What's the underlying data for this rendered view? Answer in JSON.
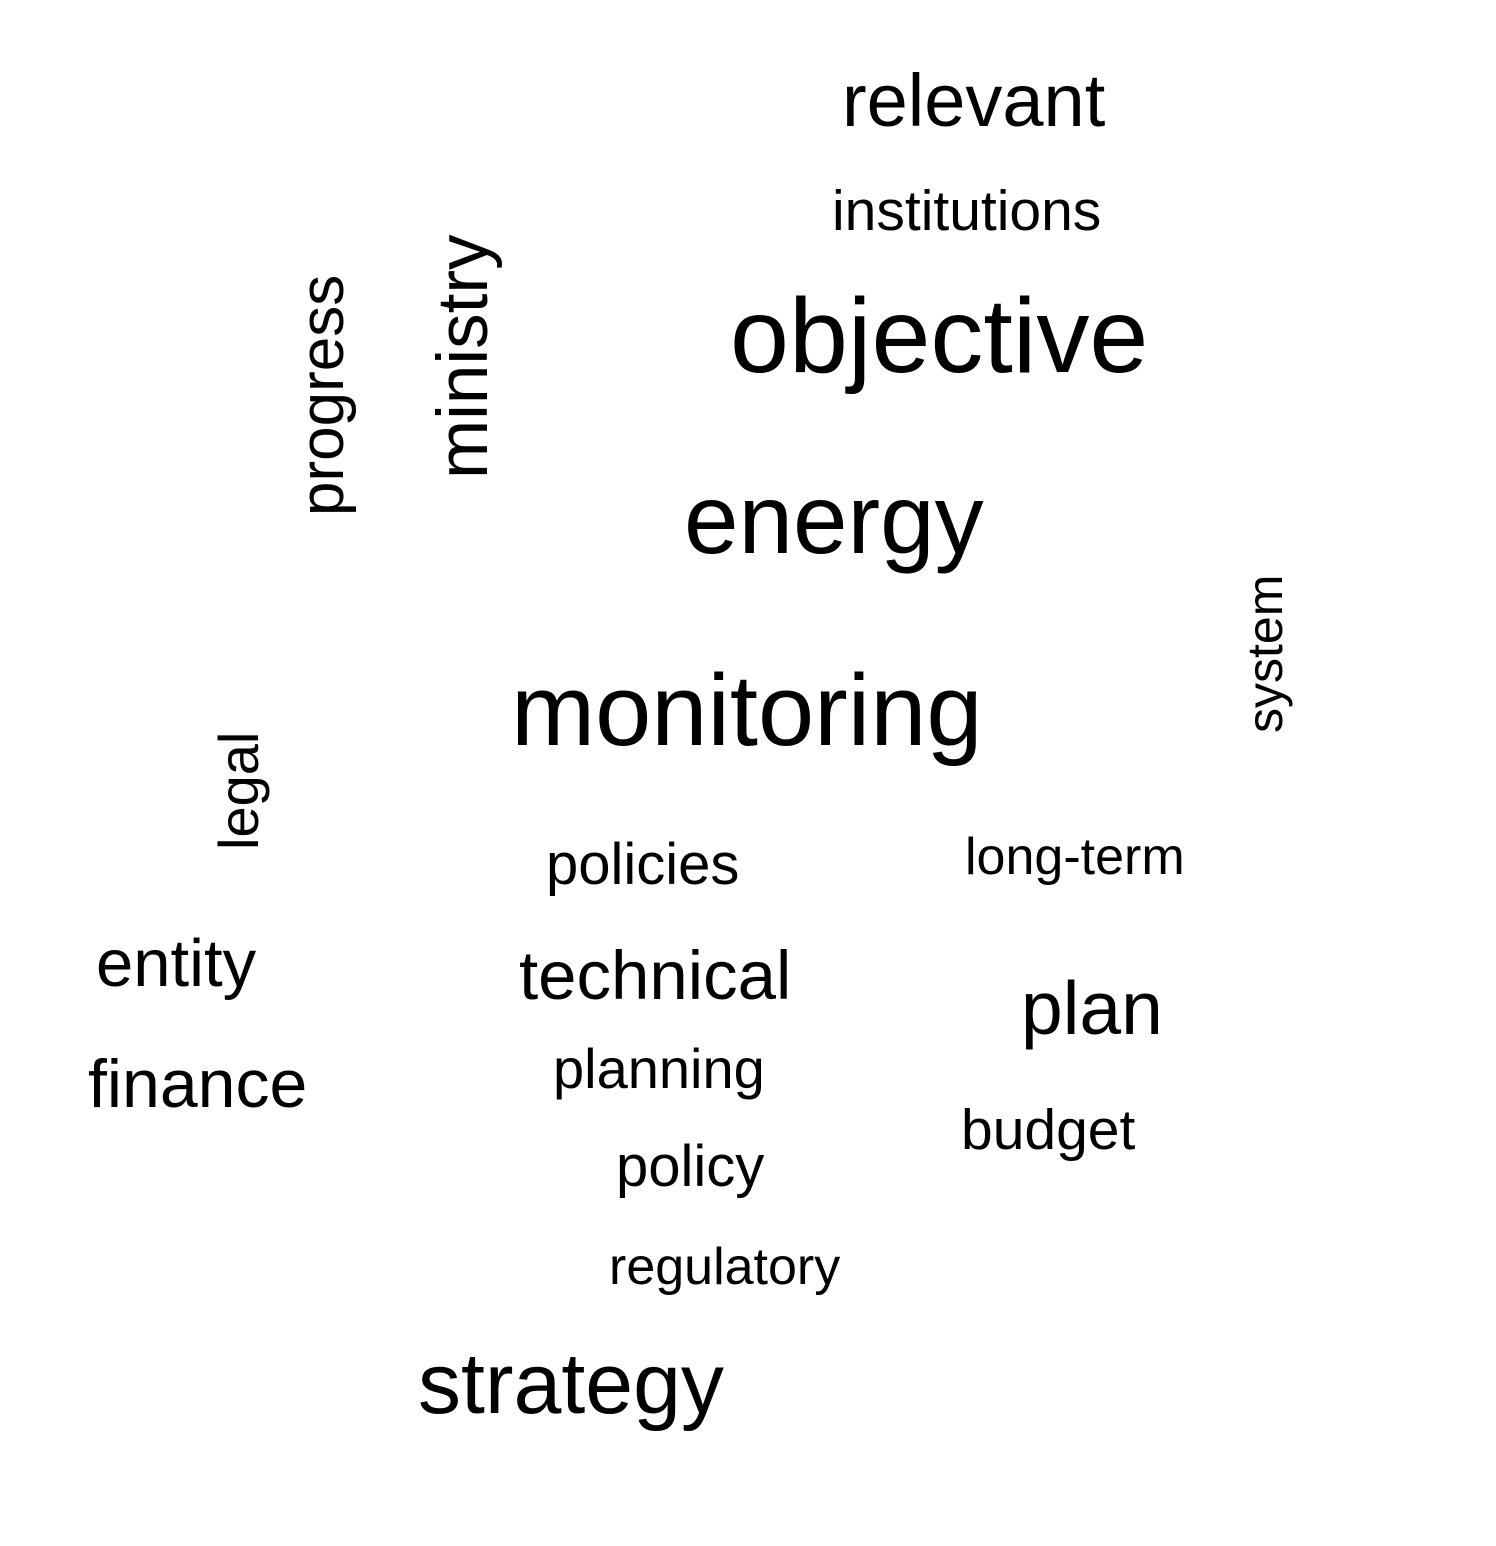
{
  "words": {
    "relevant": "relevant",
    "institutions": "institutions",
    "objective": "objective",
    "energy": "energy",
    "monitoring": "monitoring",
    "progress": "progress",
    "ministry": "ministry",
    "system": "system",
    "legal": "legal",
    "policies": "policies",
    "long_term": "long-term",
    "entity": "entity",
    "technical": "technical",
    "plan": "plan",
    "finance": "finance",
    "planning": "planning",
    "budget": "budget",
    "policy": "policy",
    "regulatory": "regulatory",
    "strategy": "strategy"
  },
  "text_color": "#000000",
  "background_color": "#ffffff"
}
